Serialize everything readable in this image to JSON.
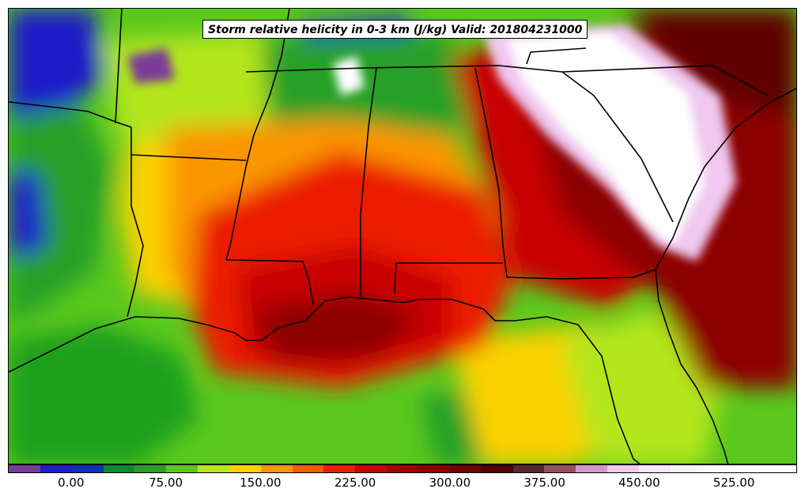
{
  "title": "Storm relative helicity in 0-3 km (J/kg) Valid: 201804231000",
  "colorbar": {
    "min": -50,
    "max": 575,
    "step": 25,
    "colors": [
      "#7a3a9a",
      "#1e1ec8",
      "#0a32b4",
      "#0a8c32",
      "#28a028",
      "#5ac81e",
      "#b4e61e",
      "#fad200",
      "#fa9600",
      "#fa5a00",
      "#eb1e00",
      "#c80000",
      "#a50000",
      "#8c0000",
      "#6e0000",
      "#500000",
      "#5a2828",
      "#96505a",
      "#d296c8",
      "#f0c8f0",
      "#fae6fa",
      "#fff0ff",
      "#fff5ff",
      "#ffffff",
      "#ffffff"
    ],
    "tick_labels": [
      "0.00",
      "75.00",
      "150.00",
      "225.00",
      "300.00",
      "375.00",
      "450.00",
      "525.00"
    ],
    "tick_values": [
      0,
      75,
      150,
      225,
      300,
      375,
      450,
      525
    ]
  },
  "field_colors": {
    "ocean_green": "#1ea01e",
    "dark_green": "#0a8c32",
    "green": "#28a028",
    "light_green": "#5ac81e",
    "lime": "#b4e61e",
    "yellow": "#fad200",
    "orange": "#fa9600",
    "orange_red": "#fa5a00",
    "red": "#eb1e00",
    "dark_red": "#c80000",
    "maroon": "#8c0000",
    "deep_maroon": "#600000",
    "blue": "#1e1ec8",
    "purple": "#7a3a9a",
    "pink": "#f0c8f0",
    "white": "#ffffff"
  }
}
